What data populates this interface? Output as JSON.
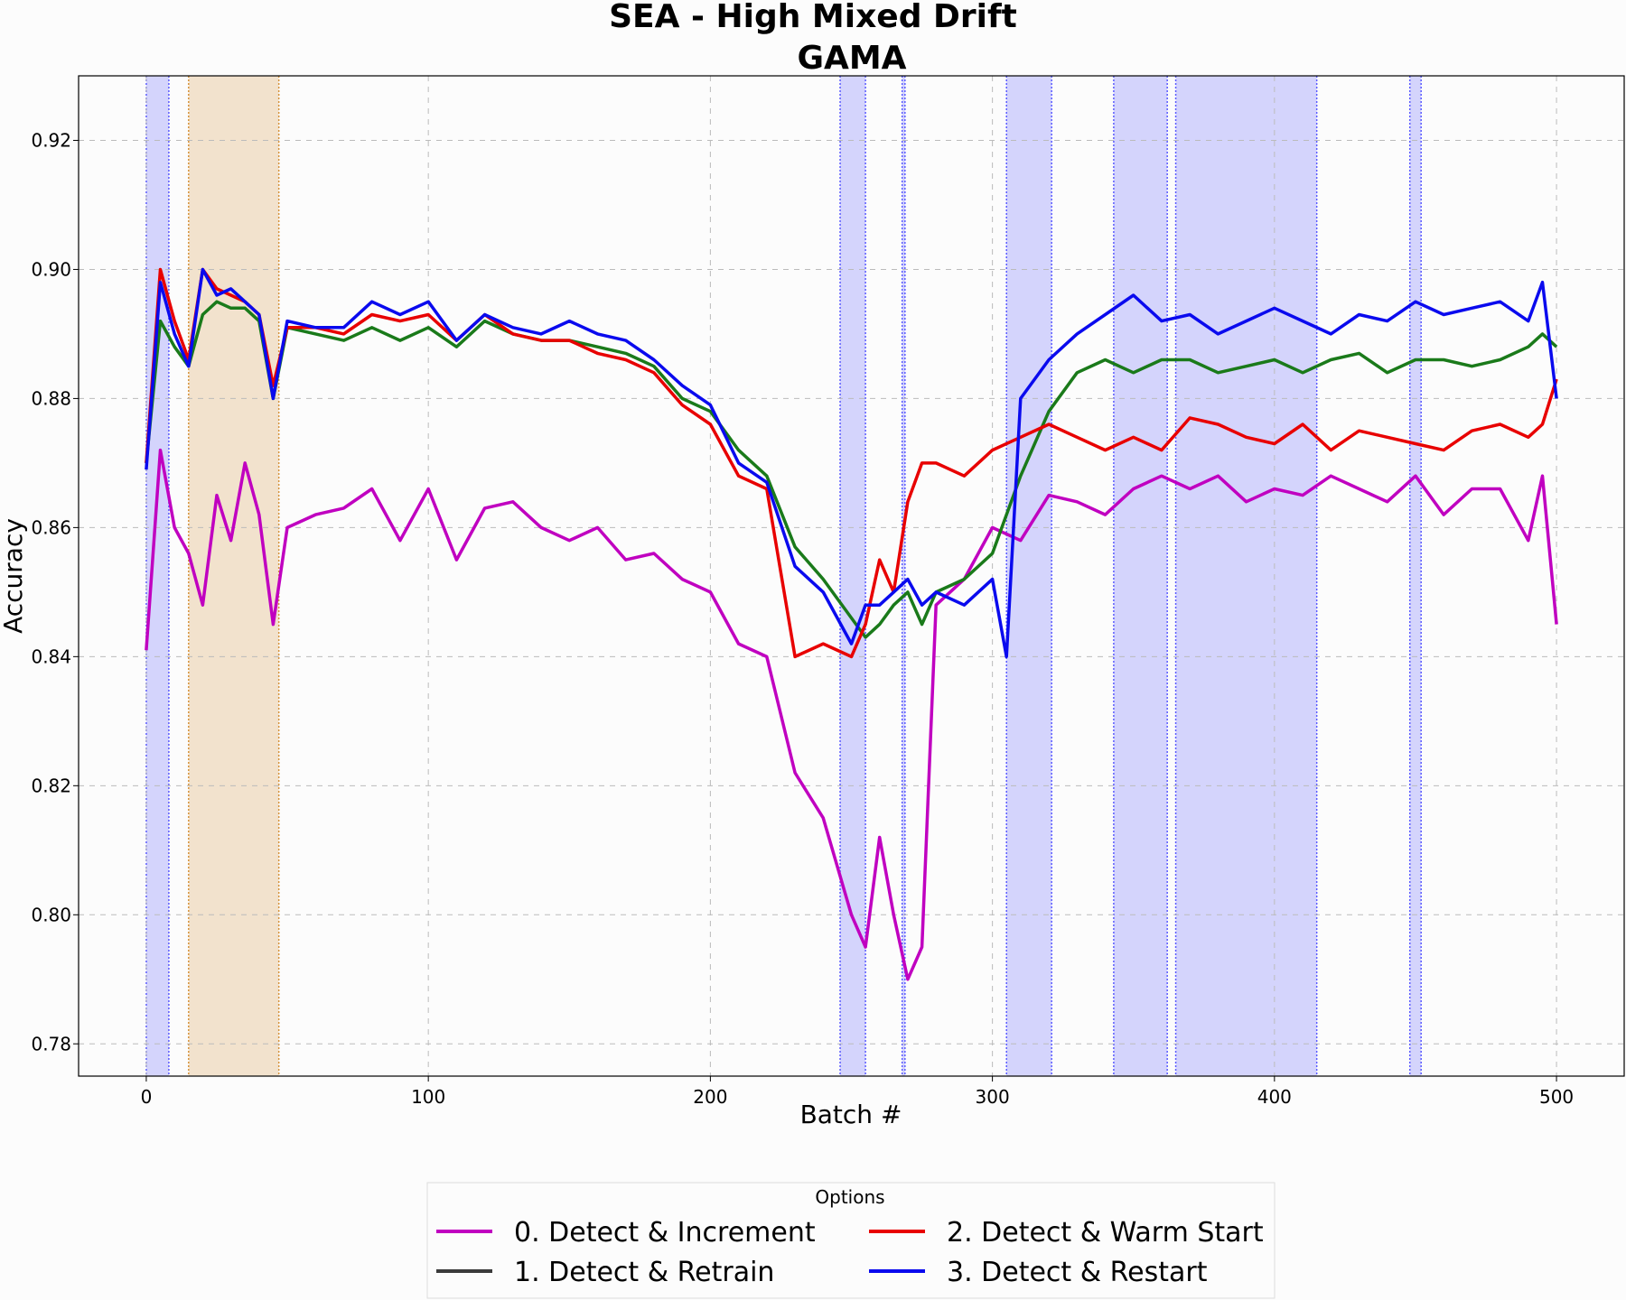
{
  "chart_data": {
    "type": "line",
    "title": "SEA - High Mixed Drift",
    "subtitle": "GAMA",
    "xlabel": "Batch #",
    "ylabel": "Accuracy",
    "xlim": [
      -24,
      524
    ],
    "ylim": [
      0.775,
      0.93
    ],
    "xticks": [
      0,
      100,
      200,
      300,
      400,
      500
    ],
    "yticks": [
      0.78,
      0.8,
      0.82,
      0.84,
      0.86,
      0.88,
      0.9,
      0.92
    ],
    "xtick_labels": [
      "0",
      "100",
      "200",
      "300",
      "400",
      "500"
    ],
    "ytick_labels": [
      "0.78",
      "0.80",
      "0.82",
      "0.84",
      "0.86",
      "0.88",
      "0.90",
      "0.92"
    ],
    "grid": true,
    "legend_title": "Options",
    "legend_position": "bottom-center",
    "series": [
      {
        "name": "0. Detect & Increment",
        "color": "#c000c0",
        "x": [
          0,
          5,
          10,
          15,
          20,
          25,
          30,
          35,
          40,
          45,
          50,
          60,
          70,
          80,
          90,
          100,
          110,
          120,
          130,
          140,
          150,
          160,
          170,
          180,
          190,
          200,
          210,
          220,
          230,
          240,
          250,
          255,
          260,
          265,
          270,
          275,
          280,
          290,
          300,
          310,
          320,
          330,
          340,
          350,
          360,
          370,
          380,
          390,
          400,
          410,
          420,
          430,
          440,
          450,
          460,
          470,
          480,
          490,
          495,
          500
        ],
        "y": [
          0.841,
          0.872,
          0.86,
          0.856,
          0.848,
          0.865,
          0.858,
          0.87,
          0.862,
          0.845,
          0.86,
          0.862,
          0.863,
          0.866,
          0.858,
          0.866,
          0.855,
          0.863,
          0.864,
          0.86,
          0.858,
          0.86,
          0.855,
          0.856,
          0.852,
          0.85,
          0.842,
          0.84,
          0.822,
          0.815,
          0.8,
          0.795,
          0.812,
          0.8,
          0.79,
          0.795,
          0.848,
          0.852,
          0.86,
          0.858,
          0.865,
          0.864,
          0.862,
          0.866,
          0.868,
          0.866,
          0.868,
          0.864,
          0.866,
          0.865,
          0.868,
          0.866,
          0.864,
          0.868,
          0.862,
          0.866,
          0.866,
          0.858,
          0.868,
          0.845
        ]
      },
      {
        "name": "1. Detect & Retrain",
        "color": "#1a7a1a",
        "x": [
          0,
          5,
          10,
          15,
          20,
          25,
          30,
          35,
          40,
          45,
          50,
          60,
          70,
          80,
          90,
          100,
          110,
          120,
          130,
          140,
          150,
          160,
          170,
          180,
          190,
          200,
          210,
          220,
          230,
          240,
          250,
          255,
          260,
          265,
          270,
          275,
          280,
          290,
          300,
          310,
          320,
          330,
          340,
          350,
          360,
          370,
          380,
          390,
          400,
          410,
          420,
          430,
          440,
          450,
          460,
          470,
          480,
          490,
          495,
          500
        ],
        "y": [
          0.87,
          0.892,
          0.888,
          0.885,
          0.893,
          0.895,
          0.894,
          0.894,
          0.892,
          0.88,
          0.891,
          0.89,
          0.889,
          0.891,
          0.889,
          0.891,
          0.888,
          0.892,
          0.89,
          0.889,
          0.889,
          0.888,
          0.887,
          0.885,
          0.88,
          0.878,
          0.872,
          0.868,
          0.857,
          0.852,
          0.846,
          0.843,
          0.845,
          0.848,
          0.85,
          0.845,
          0.85,
          0.852,
          0.856,
          0.868,
          0.878,
          0.884,
          0.886,
          0.884,
          0.886,
          0.886,
          0.884,
          0.885,
          0.886,
          0.884,
          0.886,
          0.887,
          0.884,
          0.886,
          0.886,
          0.885,
          0.886,
          0.888,
          0.89,
          0.888
        ]
      },
      {
        "name": "2. Detect & Warm Start",
        "color": "#e80000",
        "x": [
          0,
          5,
          10,
          15,
          20,
          25,
          30,
          35,
          40,
          45,
          50,
          60,
          70,
          80,
          90,
          100,
          110,
          120,
          130,
          140,
          150,
          160,
          170,
          180,
          190,
          200,
          210,
          220,
          230,
          240,
          250,
          255,
          260,
          265,
          270,
          275,
          280,
          290,
          300,
          310,
          320,
          330,
          340,
          350,
          360,
          370,
          380,
          390,
          400,
          410,
          420,
          430,
          440,
          450,
          460,
          470,
          480,
          490,
          495,
          500
        ],
        "y": [
          0.87,
          0.9,
          0.892,
          0.886,
          0.9,
          0.897,
          0.896,
          0.895,
          0.893,
          0.882,
          0.891,
          0.891,
          0.89,
          0.893,
          0.892,
          0.893,
          0.889,
          0.893,
          0.89,
          0.889,
          0.889,
          0.887,
          0.886,
          0.884,
          0.879,
          0.876,
          0.868,
          0.866,
          0.84,
          0.842,
          0.84,
          0.845,
          0.855,
          0.85,
          0.864,
          0.87,
          0.87,
          0.868,
          0.872,
          0.874,
          0.876,
          0.874,
          0.872,
          0.874,
          0.872,
          0.877,
          0.876,
          0.874,
          0.873,
          0.876,
          0.872,
          0.875,
          0.874,
          0.873,
          0.872,
          0.875,
          0.876,
          0.874,
          0.876,
          0.883
        ]
      },
      {
        "name": "3. Detect & Restart",
        "color": "#0a0aee",
        "x": [
          0,
          5,
          10,
          15,
          20,
          25,
          30,
          35,
          40,
          45,
          50,
          60,
          70,
          80,
          90,
          100,
          110,
          120,
          130,
          140,
          150,
          160,
          170,
          180,
          190,
          200,
          210,
          220,
          230,
          240,
          250,
          255,
          260,
          265,
          270,
          275,
          280,
          290,
          300,
          305,
          310,
          320,
          330,
          340,
          350,
          360,
          370,
          380,
          390,
          400,
          410,
          420,
          430,
          440,
          450,
          460,
          470,
          480,
          490,
          495,
          500
        ],
        "y": [
          0.869,
          0.898,
          0.89,
          0.885,
          0.9,
          0.896,
          0.897,
          0.895,
          0.893,
          0.88,
          0.892,
          0.891,
          0.891,
          0.895,
          0.893,
          0.895,
          0.889,
          0.893,
          0.891,
          0.89,
          0.892,
          0.89,
          0.889,
          0.886,
          0.882,
          0.879,
          0.87,
          0.867,
          0.854,
          0.85,
          0.842,
          0.848,
          0.848,
          0.85,
          0.852,
          0.848,
          0.85,
          0.848,
          0.852,
          0.84,
          0.88,
          0.886,
          0.89,
          0.893,
          0.896,
          0.892,
          0.893,
          0.89,
          0.892,
          0.894,
          0.892,
          0.89,
          0.893,
          0.892,
          0.895,
          0.893,
          0.894,
          0.895,
          0.892,
          0.898,
          0.88
        ]
      }
    ],
    "drift_bands": [
      {
        "x0": 0,
        "x1": 8,
        "color": "#4b4bff"
      },
      {
        "x0": 15,
        "x1": 47,
        "color": "#d18a2a"
      },
      {
        "x0": 246,
        "x1": 255,
        "color": "#4b4bff"
      },
      {
        "x0": 268,
        "x1": 269,
        "color": "#4b4bff"
      },
      {
        "x0": 305,
        "x1": 321,
        "color": "#4b4bff"
      },
      {
        "x0": 343,
        "x1": 362,
        "color": "#4b4bff"
      },
      {
        "x0": 365,
        "x1": 415,
        "color": "#4b4bff"
      },
      {
        "x0": 448,
        "x1": 452,
        "color": "#4b4bff"
      }
    ]
  }
}
